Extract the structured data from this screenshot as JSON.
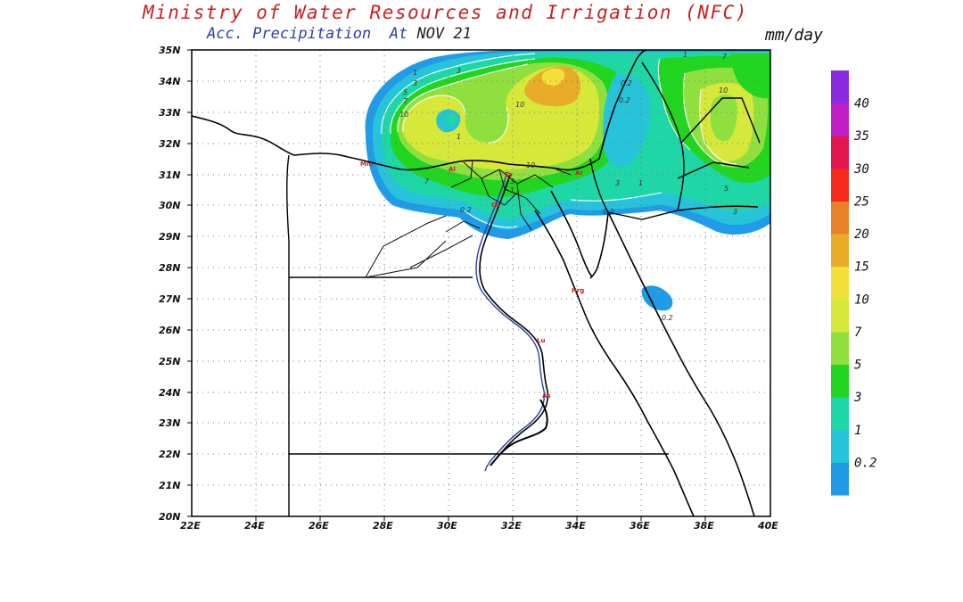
{
  "header": {
    "title": "Ministry of Water Resources and Irrigation (NFC)",
    "subtitle_label": "Acc. Precipitation",
    "subtitle_at": "At",
    "subtitle_date": "NOV 21",
    "units": "mm/day"
  },
  "map": {
    "lat_labels": [
      "35N",
      "34N",
      "33N",
      "32N",
      "31N",
      "30N",
      "29N",
      "28N",
      "27N",
      "26N",
      "25N",
      "24N",
      "23N",
      "22N",
      "21N",
      "20N"
    ],
    "lon_labels": [
      "22E",
      "24E",
      "26E",
      "28E",
      "30E",
      "32E",
      "34E",
      "36E",
      "38E",
      "40E"
    ],
    "extent": {
      "lon": [
        22,
        40
      ],
      "lat": [
        20,
        35
      ]
    },
    "contour_labels": [
      "1",
      "3",
      "5",
      "7",
      "10",
      "10",
      "3",
      "1",
      "10",
      "0.2",
      "0.2",
      "0.2",
      "0.2",
      "10",
      "7",
      "1",
      "3",
      "1",
      "5",
      "3",
      "3",
      "1",
      "7",
      "0.2"
    ]
  },
  "colorbar": {
    "levels": [
      "0.2",
      "1",
      "3",
      "5",
      "7",
      "10",
      "15",
      "20",
      "25",
      "30",
      "35",
      "40"
    ],
    "colors": [
      "#1f9be8",
      "#27c4d9",
      "#1fd6a6",
      "#21d521",
      "#8fe03f",
      "#d6e83a",
      "#f2e13a",
      "#e9ac28",
      "#e9802a",
      "#f52a1a",
      "#e2164f",
      "#c31fc8",
      "#8a2be2"
    ]
  }
}
